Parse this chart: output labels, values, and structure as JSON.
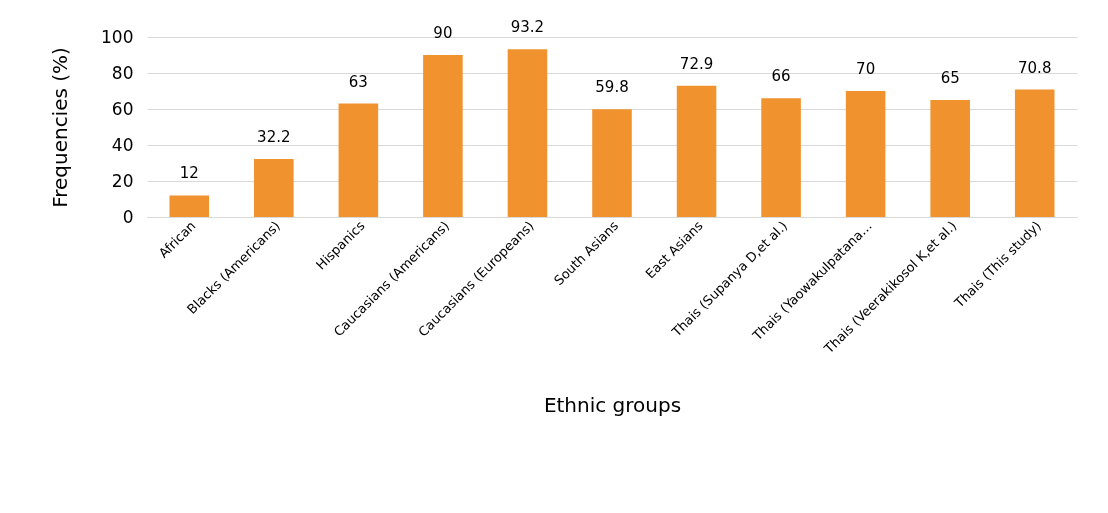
{
  "chart_data": {
    "type": "bar",
    "xlabel": "Ethnic groups",
    "ylabel": "Frequencies (%)",
    "categories": [
      "African",
      "Blacks (Americans)",
      "Hispanics",
      "Caucasians (Americans)",
      "Caucasians (Europeans)",
      "South Asians",
      "East Asians",
      "Thais (Supanya D,et al.)",
      "Thais (Yaowakulpatana…",
      "Thais (Veerakikosol K,et al.)",
      "Thais (This study)"
    ],
    "values": [
      12,
      32.2,
      63,
      90,
      93.2,
      59.8,
      72.9,
      66,
      70,
      65,
      70.8
    ],
    "color": "#f0922e",
    "ylim": [
      0,
      100
    ],
    "yticks": [
      0,
      20,
      40,
      60,
      80,
      100
    ],
    "grid": "y",
    "data_labels": true
  }
}
